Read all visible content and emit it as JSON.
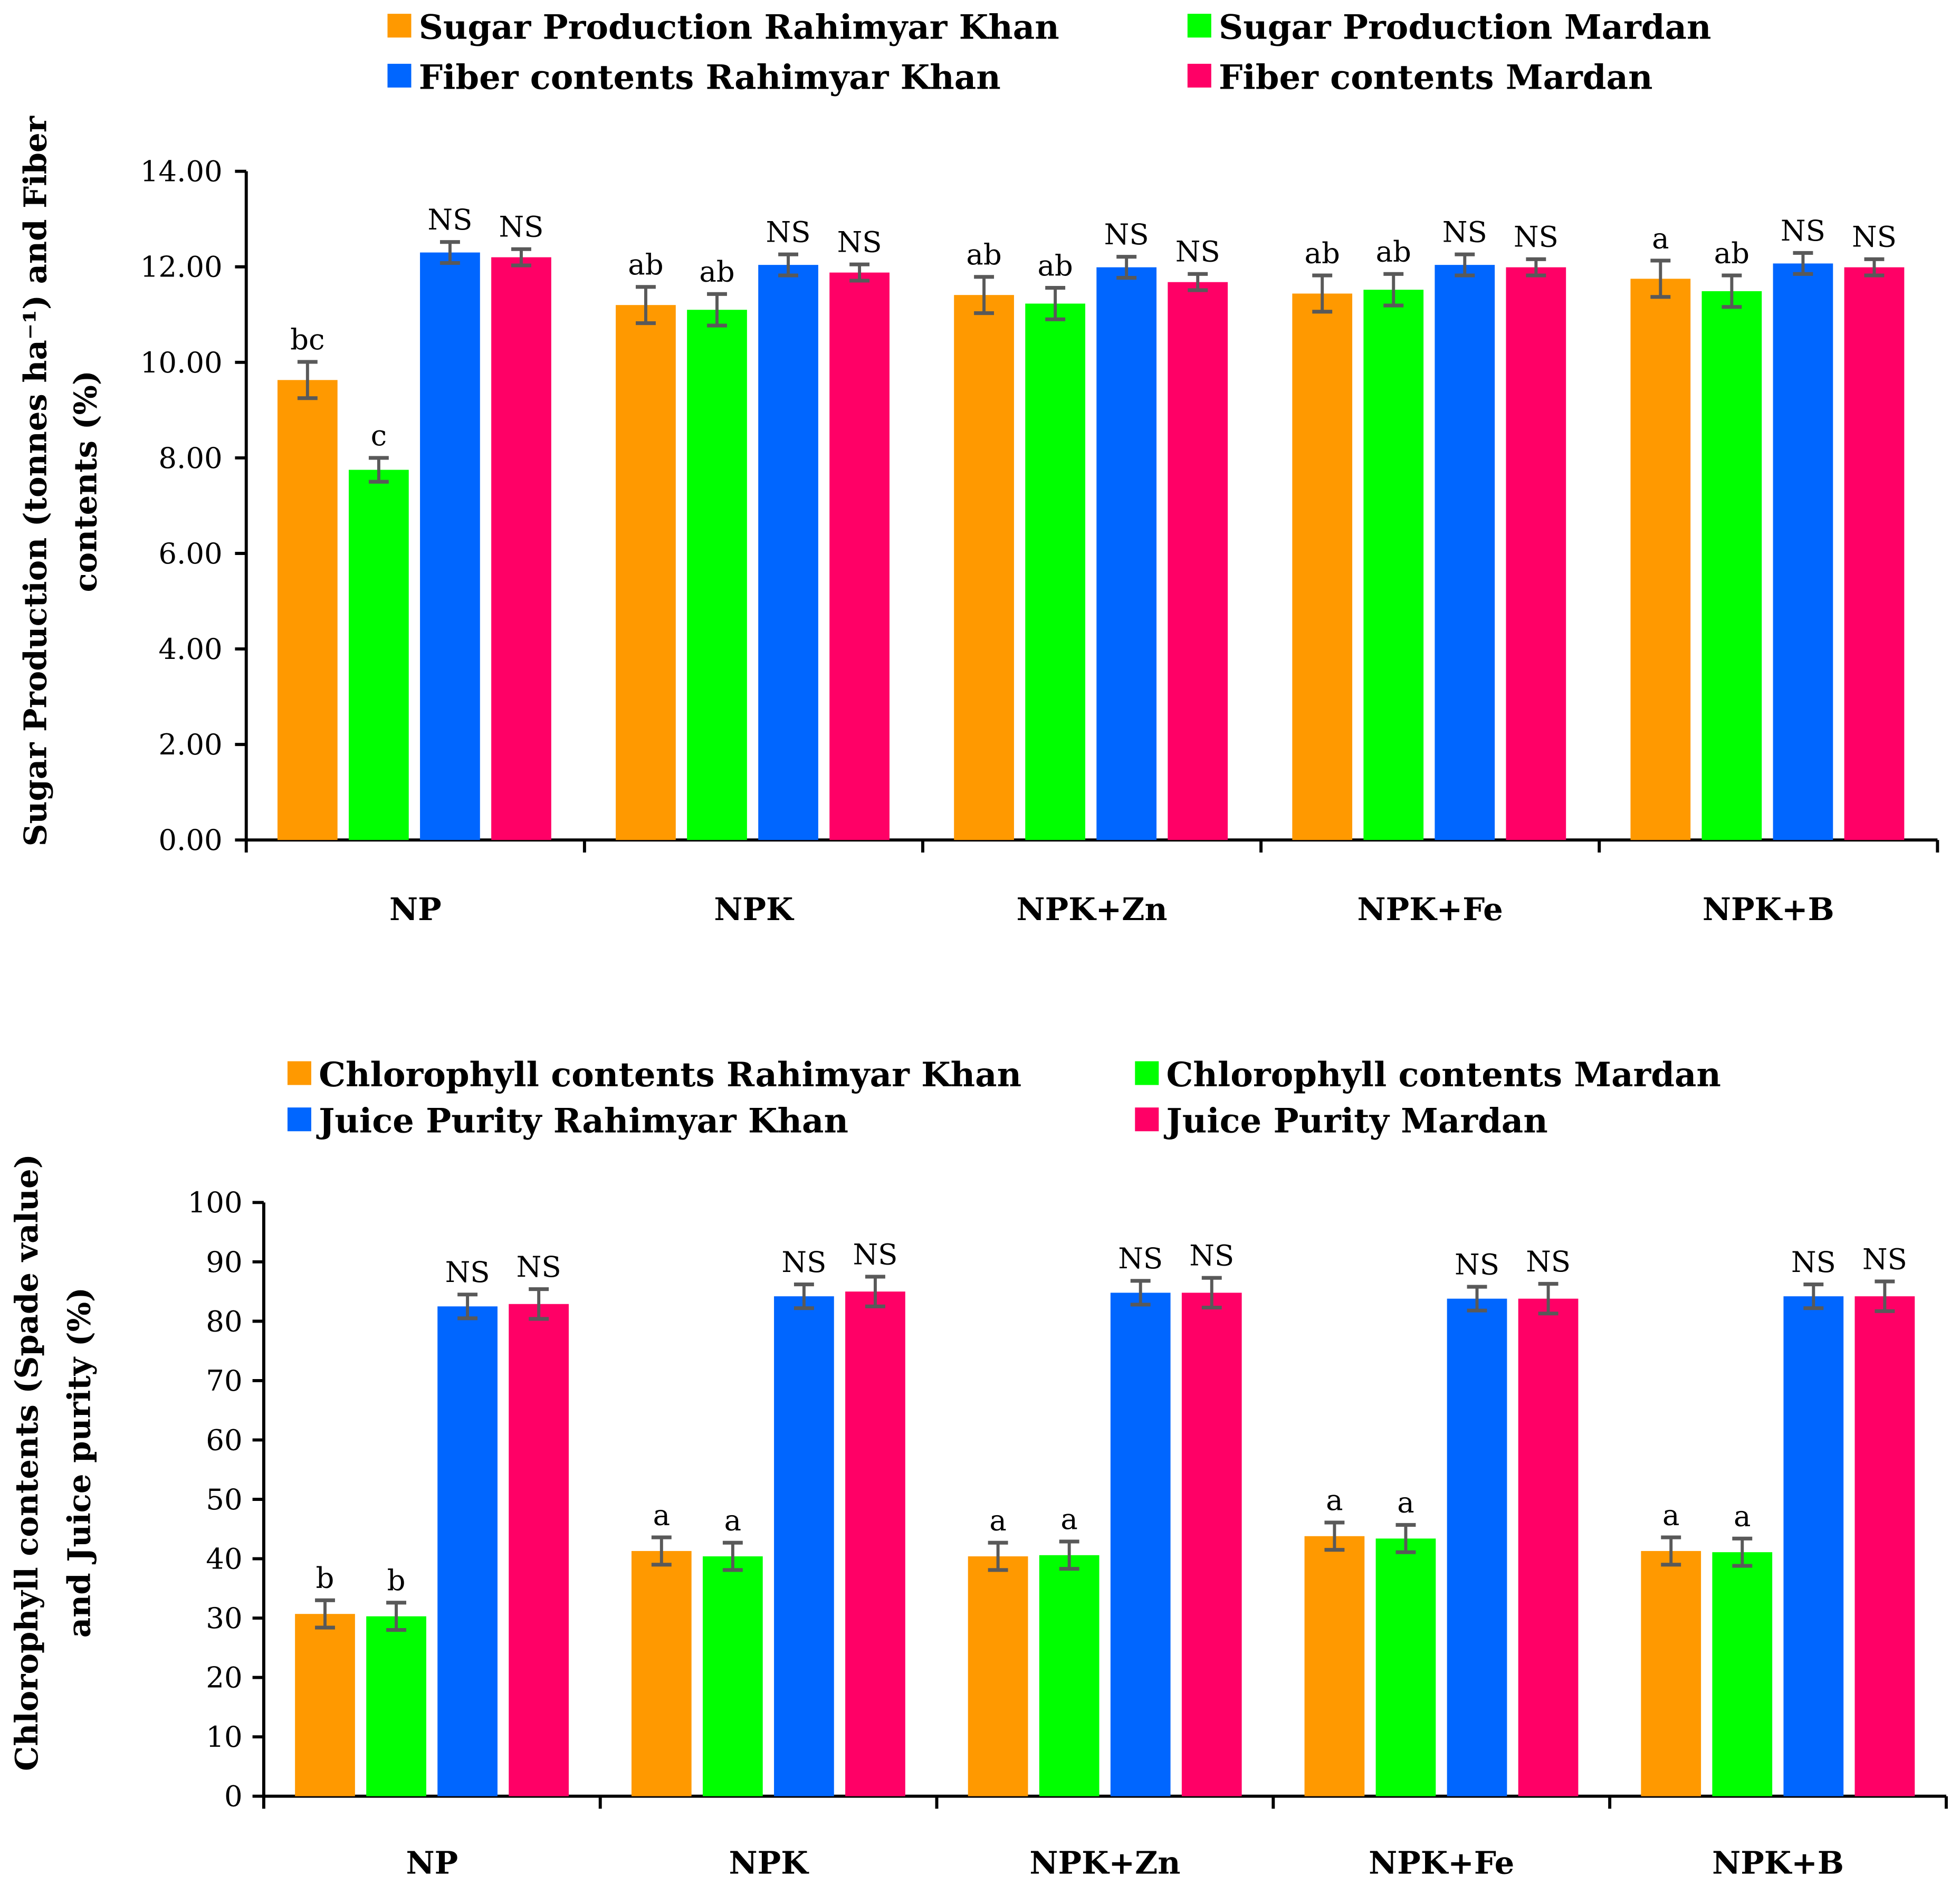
{
  "chart_data": [
    {
      "type": "bar",
      "ylabel_lines": [
        "Sugar Production (tonnes ha⁻¹) and Fiber",
        "contents (%)"
      ],
      "categories": [
        "NP",
        "NPK",
        "NPK+Zn",
        "NPK+Fe",
        "NPK+B"
      ],
      "ylim": [
        0,
        14
      ],
      "yticks": [
        "0.00",
        "2.00",
        "4.00",
        "6.00",
        "8.00",
        "10.00",
        "12.00",
        "14.00"
      ],
      "ytick_values": [
        0,
        2,
        4,
        6,
        8,
        10,
        12,
        14
      ],
      "legend_placement": "top",
      "series": [
        {
          "name": "Sugar Production Rahimyar Khan",
          "color": "#FF9900",
          "values": [
            9.63,
            11.2,
            11.41,
            11.44,
            11.75
          ],
          "errors": [
            0.38,
            0.38,
            0.38,
            0.38,
            0.38
          ],
          "labels": [
            "bc",
            "ab",
            "ab",
            "ab",
            "a"
          ]
        },
        {
          "name": "Sugar Production Mardan",
          "color": "#00FF00",
          "values": [
            7.75,
            11.1,
            11.23,
            11.52,
            11.49
          ],
          "errors": [
            0.25,
            0.33,
            0.33,
            0.33,
            0.33
          ],
          "labels": [
            "c",
            "ab",
            "ab",
            "ab",
            "ab"
          ]
        },
        {
          "name": "Fiber contents Rahimyar Khan",
          "color": "#0066FF",
          "values": [
            12.3,
            12.04,
            11.99,
            12.04,
            12.07
          ],
          "errors": [
            0.22,
            0.22,
            0.22,
            0.22,
            0.22
          ],
          "labels": [
            "NS",
            "NS",
            "NS",
            "NS",
            "NS"
          ]
        },
        {
          "name": "Fiber contents Mardan",
          "color": "#FF0066",
          "values": [
            12.2,
            11.88,
            11.68,
            11.99,
            11.99
          ],
          "errors": [
            0.17,
            0.17,
            0.17,
            0.17,
            0.17
          ],
          "labels": [
            "NS",
            "NS",
            "NS",
            "NS",
            "NS"
          ]
        }
      ]
    },
    {
      "type": "bar",
      "ylabel_lines": [
        "Chlorophyll contents (Spade value)",
        "and Juice purity (%)"
      ],
      "categories": [
        "NP",
        "NPK",
        "NPK+Zn",
        "NPK+Fe",
        "NPK+B"
      ],
      "ylim": [
        0,
        100
      ],
      "yticks": [
        "0",
        "10",
        "20",
        "30",
        "40",
        "50",
        "60",
        "70",
        "80",
        "90",
        "100"
      ],
      "ytick_values": [
        0,
        10,
        20,
        30,
        40,
        50,
        60,
        70,
        80,
        90,
        100
      ],
      "legend_placement": "top",
      "series": [
        {
          "name": "Chlorophyll contents Rahimyar Khan",
          "color": "#FF9900",
          "values": [
            30.7,
            41.3,
            40.4,
            43.8,
            41.3
          ],
          "errors": [
            2.3,
            2.3,
            2.3,
            2.3,
            2.3
          ],
          "labels": [
            "b",
            "a",
            "a",
            "a",
            "a"
          ]
        },
        {
          "name": "Chlorophyll contents Mardan",
          "color": "#00FF00",
          "values": [
            30.3,
            40.4,
            40.6,
            43.4,
            41.1
          ],
          "errors": [
            2.3,
            2.3,
            2.3,
            2.3,
            2.3
          ],
          "labels": [
            "b",
            "a",
            "a",
            "a",
            "a"
          ]
        },
        {
          "name": "Juice Purity Rahimyar Khan",
          "color": "#0066FF",
          "values": [
            82.5,
            84.2,
            84.8,
            83.8,
            84.2
          ],
          "errors": [
            2.0,
            2.0,
            2.0,
            2.0,
            2.0
          ],
          "labels": [
            "NS",
            "NS",
            "NS",
            "NS",
            "NS"
          ]
        },
        {
          "name": "Juice Purity Mardan",
          "color": "#FF0066",
          "values": [
            82.9,
            85.0,
            84.8,
            83.8,
            84.2
          ],
          "errors": [
            2.5,
            2.5,
            2.5,
            2.5,
            2.5
          ],
          "labels": [
            "NS",
            "NS",
            "NS",
            "NS",
            "NS"
          ]
        }
      ]
    }
  ]
}
